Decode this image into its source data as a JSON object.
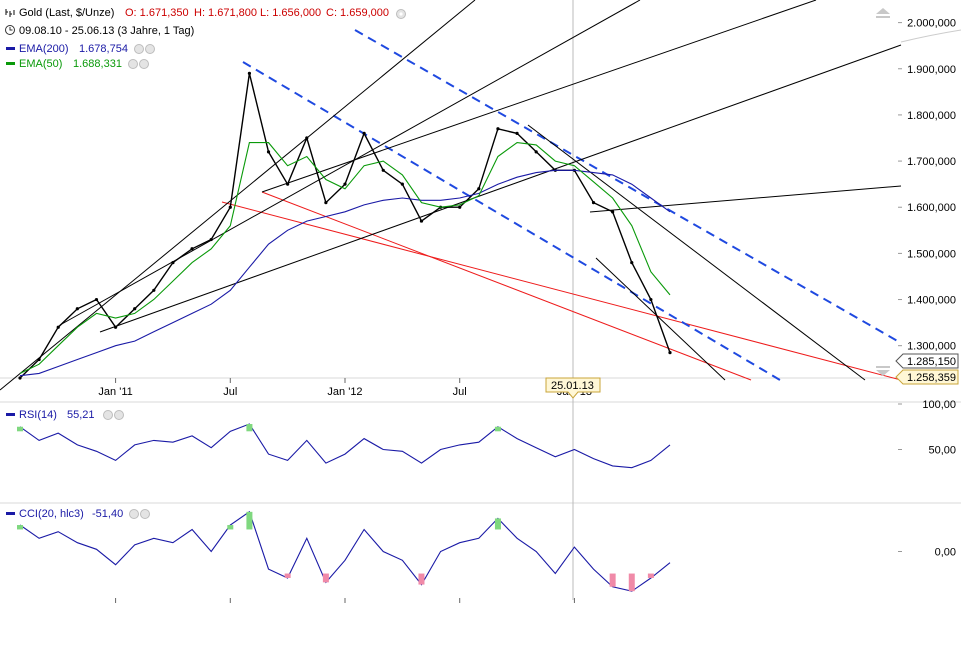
{
  "header": {
    "instrument": "Gold (Last, $/Unze)",
    "open_label": "O: 1.671,350",
    "high_label": "H: 1.671,800",
    "low_label": "L: 1.656,000",
    "close_label": "C: 1.659,000",
    "period": "09.08.10 - 25.06.13 (3 Jahre, 1 Tag)",
    "ema200_label": "EMA(200)",
    "ema200_value": "1.678,754",
    "ema50_label": "EMA(50)",
    "ema50_value": "1.688,331",
    "rsi_label": "RSI(14)",
    "rsi_value": "55,21",
    "cci_label": "CCI(20, hlc3)",
    "cci_value": "-51,40",
    "crosshair_date": "25.01.13",
    "last_price_tag": "1.285,150",
    "ema_price_tag": "1.258,359"
  },
  "colors": {
    "price": "#000000",
    "ema200": "#1a1aa6",
    "ema50": "#0a9a0a",
    "ohlc_red": "#cc0000",
    "trend_blue_dashed": "#1f49e0",
    "trend_red": "#ee1c1c",
    "trend_black": "#000000",
    "indicator_line": "#1a1aa6",
    "overbought_fill": "#7fd87f",
    "oversold_fill": "#f08aa8"
  },
  "chart_data": [
    {
      "type": "line",
      "title": "Gold (Last, $/Unze)",
      "x_ticks": [
        "Jan '11",
        "Jul",
        "Jan '12",
        "Jul",
        "Jan '13"
      ],
      "y_ticks": [
        "1.300,000",
        "1.400,000",
        "1.500,000",
        "1.600,000",
        "1.700,000",
        "1.800,000",
        "1.900,000",
        "2.000,000"
      ],
      "ylim": [
        1230,
        2010
      ],
      "x": [
        "2010-08",
        "2010-09",
        "2010-10",
        "2010-11",
        "2010-12",
        "2011-01",
        "2011-02",
        "2011-03",
        "2011-04",
        "2011-05",
        "2011-06",
        "2011-07",
        "2011-08",
        "2011-09",
        "2011-10",
        "2011-11",
        "2011-12",
        "2012-01",
        "2012-02",
        "2012-03",
        "2012-04",
        "2012-05",
        "2012-06",
        "2012-07",
        "2012-08",
        "2012-09",
        "2012-10",
        "2012-11",
        "2012-12",
        "2013-01",
        "2013-02",
        "2013-03",
        "2013-04",
        "2013-05",
        "2013-06"
      ],
      "series": [
        {
          "name": "Gold (Last, $/Unze)",
          "values": [
            1230,
            1270,
            1340,
            1380,
            1400,
            1340,
            1380,
            1420,
            1480,
            1510,
            1530,
            1600,
            1890,
            1720,
            1650,
            1750,
            1610,
            1650,
            1760,
            1680,
            1650,
            1570,
            1600,
            1600,
            1640,
            1770,
            1760,
            1720,
            1680,
            1680,
            1610,
            1590,
            1480,
            1400,
            1285
          ]
        },
        {
          "name": "EMA(200)",
          "values": [
            1235,
            1240,
            1255,
            1270,
            1285,
            1300,
            1310,
            1330,
            1350,
            1370,
            1390,
            1420,
            1470,
            1520,
            1550,
            1570,
            1580,
            1590,
            1605,
            1615,
            1620,
            1615,
            1615,
            1620,
            1630,
            1650,
            1665,
            1675,
            1680,
            1680,
            1675,
            1670,
            1650,
            1620,
            1590
          ]
        },
        {
          "name": "EMA(50)",
          "values": [
            1240,
            1260,
            1300,
            1340,
            1370,
            1360,
            1370,
            1400,
            1440,
            1480,
            1510,
            1560,
            1740,
            1740,
            1690,
            1710,
            1660,
            1640,
            1690,
            1700,
            1670,
            1610,
            1600,
            1605,
            1625,
            1710,
            1740,
            1735,
            1700,
            1690,
            1655,
            1620,
            1560,
            1460,
            1410
          ]
        }
      ]
    },
    {
      "type": "line",
      "title": "RSI(14)",
      "y_ticks": [
        "50,00",
        "100,00"
      ],
      "ylim": [
        0,
        100
      ],
      "series": [
        {
          "name": "RSI(14)",
          "values": [
            75,
            60,
            68,
            55,
            48,
            38,
            55,
            60,
            58,
            65,
            52,
            70,
            78,
            45,
            38,
            60,
            35,
            45,
            62,
            50,
            48,
            35,
            50,
            55,
            58,
            75,
            62,
            52,
            42,
            50,
            40,
            32,
            30,
            38,
            55
          ]
        }
      ]
    },
    {
      "type": "line",
      "title": "CCI(20, hlc3)",
      "y_ticks": [
        "0,00"
      ],
      "series": [
        {
          "name": "CCI(20, hlc3)",
          "values": [
            120,
            60,
            90,
            40,
            10,
            -60,
            30,
            60,
            40,
            100,
            0,
            120,
            180,
            -80,
            -120,
            60,
            -140,
            -40,
            100,
            0,
            -40,
            -150,
            0,
            40,
            60,
            150,
            60,
            0,
            -100,
            20,
            -80,
            -160,
            -180,
            -120,
            -51
          ]
        }
      ]
    }
  ]
}
